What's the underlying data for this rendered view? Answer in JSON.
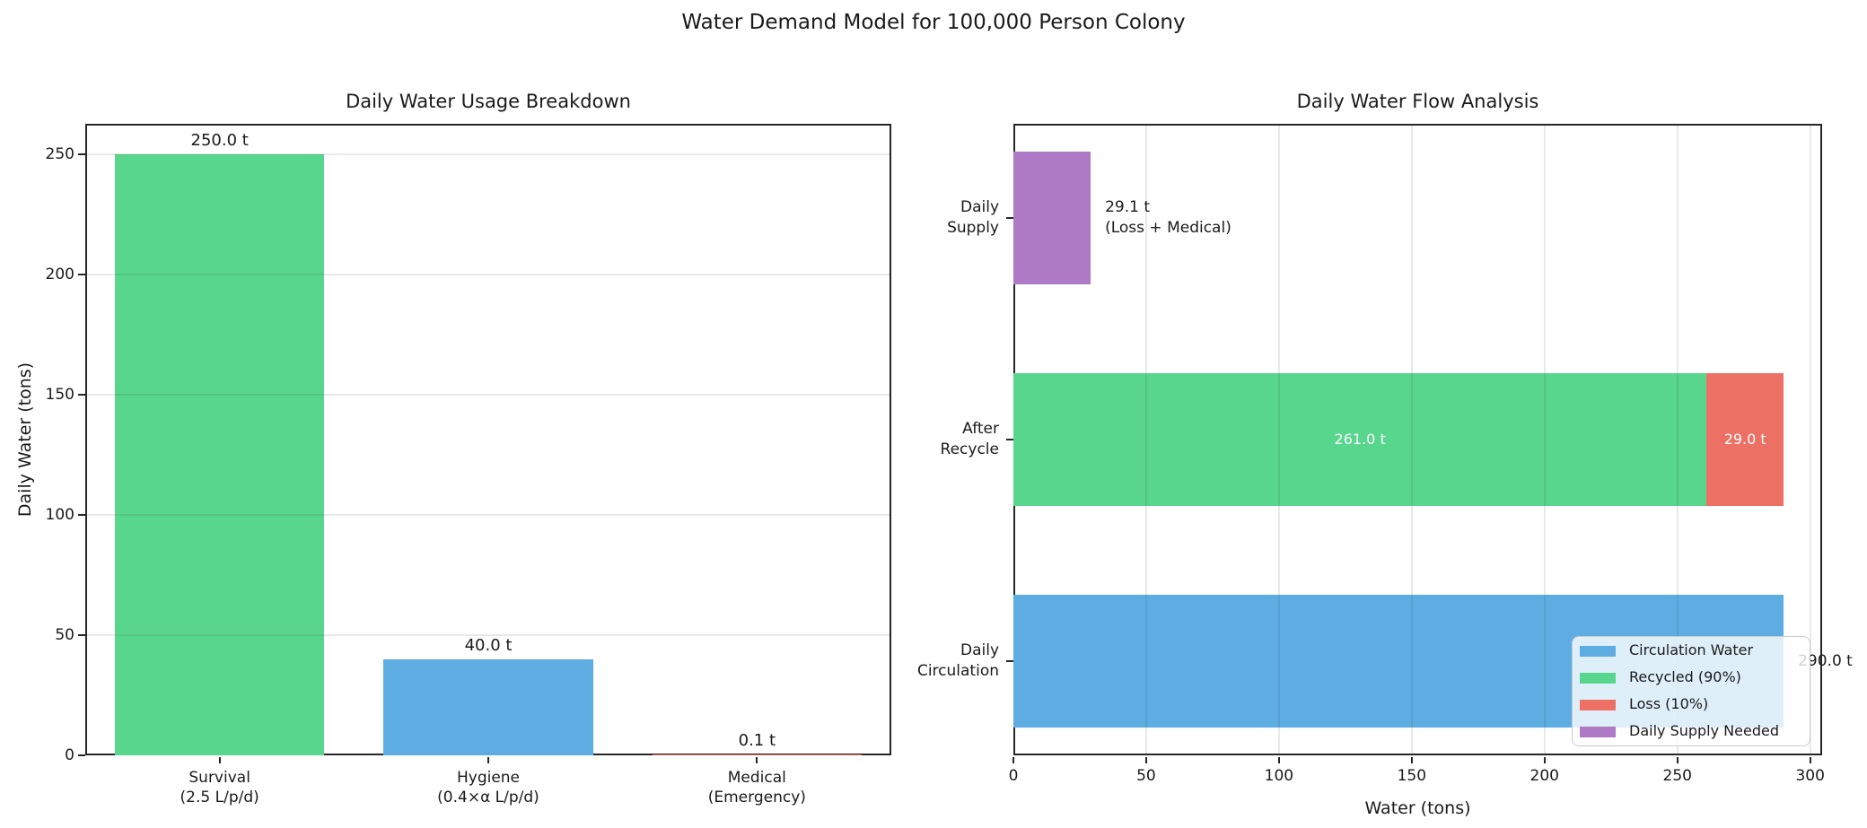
{
  "suptitle": "Water Demand Model for 100,000 Person Colony",
  "colors": {
    "green": "#58d68d",
    "blue": "#5dade2",
    "red": "#ec7063",
    "purple": "#af7ac5",
    "grid": "#e8e8e8",
    "spine": "#262626",
    "text": "#1a1a1a"
  },
  "chart_data": [
    {
      "type": "bar",
      "title": "Daily Water Usage Breakdown",
      "ylabel": "Daily Water (tons)",
      "ylim": [
        0,
        262.5
      ],
      "yticks": [
        0,
        50,
        100,
        150,
        200,
        250
      ],
      "grid": "horizontal",
      "categories": [
        [
          "Survival",
          "(2.5 L/p/d)"
        ],
        [
          "Hygiene",
          "(0.4×α L/p/d)"
        ],
        [
          "Medical",
          "(Emergency)"
        ]
      ],
      "values": [
        250.0,
        40.0,
        0.1
      ],
      "bar_labels": [
        "250.0 t",
        "40.0 t",
        "0.1 t"
      ],
      "bar_colors": [
        "green",
        "blue",
        "red"
      ]
    },
    {
      "type": "bar-horizontal-stacked",
      "title": "Daily Water Flow Analysis",
      "xlabel": "Water (tons)",
      "xlim": [
        0,
        304.5
      ],
      "xticks": [
        0,
        50,
        100,
        150,
        200,
        250,
        300
      ],
      "grid": "vertical",
      "rows": [
        {
          "category": [
            "Daily",
            "Supply"
          ],
          "segments": [
            {
              "value": 29.1,
              "color": "purple",
              "label": ""
            }
          ],
          "annotation": [
            "29.1 t",
            "(Loss + Medical)"
          ]
        },
        {
          "category": [
            "After",
            "Recycle"
          ],
          "segments": [
            {
              "value": 261.0,
              "color": "green",
              "label": "261.0 t"
            },
            {
              "value": 29.0,
              "color": "red",
              "label": "29.0 t"
            }
          ]
        },
        {
          "category": [
            "Daily",
            "Circulation"
          ],
          "segments": [
            {
              "value": 290.0,
              "color": "blue",
              "label": ""
            }
          ],
          "end_label": "290.0 t"
        }
      ],
      "legend": [
        {
          "label": "Circulation Water",
          "color": "blue"
        },
        {
          "label": "Recycled (90%)",
          "color": "green"
        },
        {
          "label": "Loss (10%)",
          "color": "red"
        },
        {
          "label": "Daily Supply Needed",
          "color": "purple"
        }
      ],
      "legend_position": "lower right"
    }
  ]
}
